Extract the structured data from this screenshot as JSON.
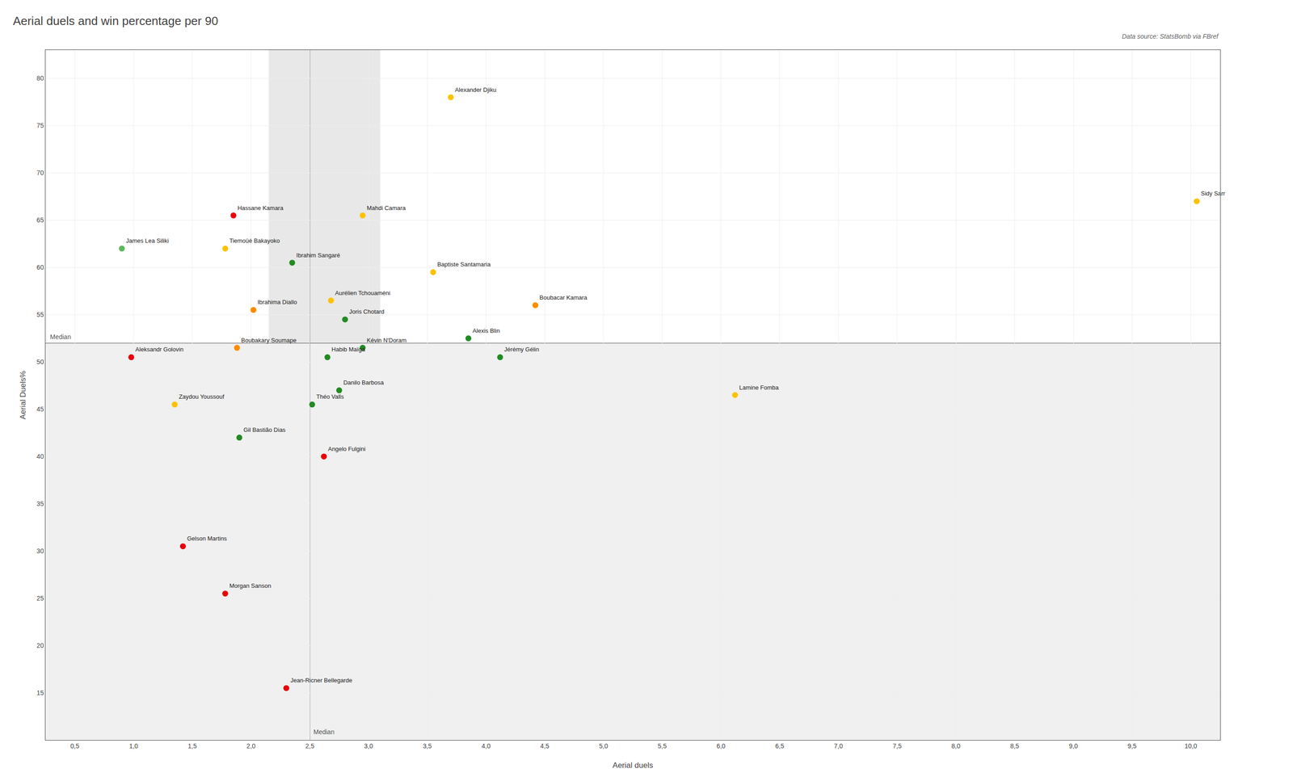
{
  "chart_data": {
    "type": "scatter",
    "title": "Aerial duels and win percentage per 90",
    "source": "Data source: StatsBomb via FBref",
    "xlabel": "Aerial duels",
    "ylabel": "Aerial Duels%",
    "xlim": [
      0.25,
      10.25
    ],
    "ylim": [
      10,
      83
    ],
    "xticks": [
      {
        "value": 0.5,
        "label": "0,5"
      },
      {
        "value": 1.0,
        "label": "1,0"
      },
      {
        "value": 1.5,
        "label": "1,5"
      },
      {
        "value": 2.0,
        "label": "2,0"
      },
      {
        "value": 2.5,
        "label": "2,5"
      },
      {
        "value": 3.0,
        "label": "3,0"
      },
      {
        "value": 3.5,
        "label": "3,5"
      },
      {
        "value": 4.0,
        "label": "4,0"
      },
      {
        "value": 4.5,
        "label": "4,5"
      },
      {
        "value": 5.0,
        "label": "5,0"
      },
      {
        "value": 5.5,
        "label": "5,5"
      },
      {
        "value": 6.0,
        "label": "6,0"
      },
      {
        "value": 6.5,
        "label": "6,5"
      },
      {
        "value": 7.0,
        "label": "7,0"
      },
      {
        "value": 7.5,
        "label": "7,5"
      },
      {
        "value": 8.0,
        "label": "8,0"
      },
      {
        "value": 8.5,
        "label": "8,5"
      },
      {
        "value": 9.0,
        "label": "9,0"
      },
      {
        "value": 9.5,
        "label": "9,5"
      },
      {
        "value": 10.0,
        "label": "10,0"
      }
    ],
    "yticks": [
      15,
      20,
      25,
      30,
      35,
      40,
      45,
      50,
      55,
      60,
      65,
      70,
      75,
      80
    ],
    "grid": true,
    "median_lines": [
      {
        "axis": "x",
        "value": 2.5,
        "label": "Median"
      },
      {
        "axis": "y",
        "value": 52.0,
        "label": "Median"
      }
    ],
    "highlight_x": [
      2.15,
      3.1
    ],
    "point_labels": [
      "Alexander Djiku",
      "Sidy Sarr",
      "Mahdi Camara",
      "Hassane Kamara",
      "James Lea Siliki",
      "Tiemoüé Bakayoko",
      "Ibrahim Sangaré",
      "Baptiste Santamaria",
      "Aurélien Tchouaméni",
      "Boubacar Kamara",
      "Ibrahima Diallo",
      "Joris Chotard",
      "Alexis Blin",
      "Kévin N'Doram",
      "Boubakary Soumаре",
      "Habib Maïga",
      "Jérémy Gélin",
      "Aleksandr Golovin",
      "Danilo Barbosa",
      "Théo Valls",
      "Zaydou Youssouf",
      "Lamine Fomba",
      "Gil Bastião Dias",
      "Angelo Fulgini",
      "Gelson Martins",
      "Morgan Sanson",
      "Jean-Ricner Bellegarde"
    ],
    "x": [
      3.7,
      10.05,
      2.95,
      1.85,
      0.9,
      1.78,
      2.35,
      3.55,
      2.68,
      4.42,
      2.02,
      2.8,
      3.85,
      2.95,
      1.88,
      2.65,
      4.12,
      0.98,
      2.75,
      2.52,
      1.35,
      6.12,
      1.9,
      2.62,
      1.42,
      1.78,
      2.3
    ],
    "values": [
      78.0,
      67.0,
      65.5,
      65.5,
      62.0,
      62.0,
      60.5,
      59.5,
      56.5,
      56.0,
      55.5,
      54.5,
      52.5,
      51.5,
      51.5,
      50.5,
      50.5,
      50.5,
      47.0,
      45.5,
      45.5,
      46.5,
      42.0,
      40.0,
      30.5,
      25.5,
      15.5
    ],
    "colors": [
      "#FFC200",
      "#FFC200",
      "#FFC200",
      "#E8000A",
      "#5CB85C",
      "#FFC200",
      "#228B22",
      "#FFC200",
      "#FFC200",
      "#FF8C00",
      "#FF8C00",
      "#228B22",
      "#228B22",
      "#228B22",
      "#FF8C00",
      "#228B22",
      "#228B22",
      "#E8000A",
      "#228B22",
      "#228B22",
      "#FFC200",
      "#FFC200",
      "#228B22",
      "#E8000A",
      "#E8000A",
      "#E8000A",
      "#E8000A"
    ]
  }
}
